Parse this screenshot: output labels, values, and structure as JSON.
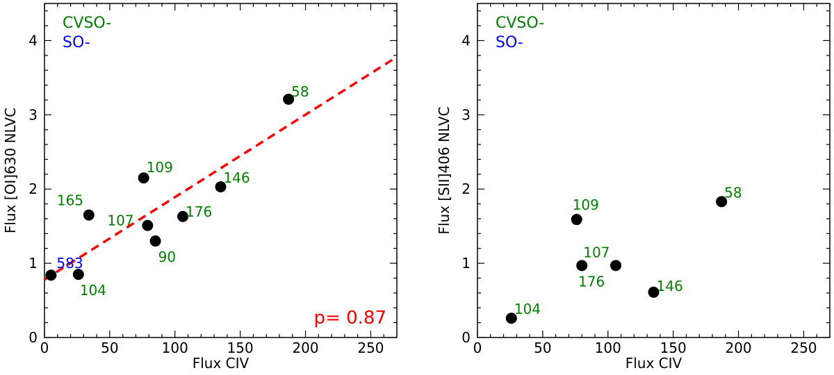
{
  "chart_data": [
    {
      "type": "scatter",
      "xlabel": "Flux CIV",
      "ylabel": "Flux [OI]630 NLVC",
      "xlim": [
        0,
        270
      ],
      "ylim": [
        0,
        4.5
      ],
      "xticks": [
        0,
        50,
        100,
        150,
        200,
        250
      ],
      "yticks": [
        0,
        1,
        2,
        3,
        4
      ],
      "legend": [
        {
          "text": "CVSO-",
          "color": "#008000"
        },
        {
          "text": "SO-",
          "color": "#0000ff"
        }
      ],
      "points": [
        {
          "x": 5,
          "y": 0.84,
          "label": "583",
          "color": "#0000ff"
        },
        {
          "x": 26,
          "y": 0.85,
          "label": "104",
          "color": "#008000"
        },
        {
          "x": 34,
          "y": 1.65,
          "label": "165",
          "color": "#008000"
        },
        {
          "x": 76,
          "y": 2.15,
          "label": "109",
          "color": "#008000"
        },
        {
          "x": 79,
          "y": 1.51,
          "label": "107",
          "color": "#008000"
        },
        {
          "x": 85,
          "y": 1.3,
          "label": "90",
          "color": "#008000"
        },
        {
          "x": 106,
          "y": 1.63,
          "label": "176",
          "color": "#008000"
        },
        {
          "x": 135,
          "y": 2.03,
          "label": "146",
          "color": "#008000"
        },
        {
          "x": 187,
          "y": 3.21,
          "label": "58",
          "color": "#008000"
        }
      ],
      "fit_line": {
        "x": [
          0,
          270
        ],
        "y": [
          0.78,
          3.78
        ],
        "color": "#ff0000",
        "style": "dashed"
      },
      "annotation": {
        "text": "p=  0.87",
        "color": "#ff0000"
      }
    },
    {
      "type": "scatter",
      "xlabel": "Flux CIV",
      "ylabel": "Flux [SII]406 NLVC",
      "xlim": [
        0,
        270
      ],
      "ylim": [
        0,
        4.5
      ],
      "xticks": [
        0,
        50,
        100,
        150,
        200,
        250
      ],
      "yticks": [
        0,
        1,
        2,
        3,
        4
      ],
      "legend": [
        {
          "text": "CVSO-",
          "color": "#008000"
        },
        {
          "text": "SO-",
          "color": "#0000ff"
        }
      ],
      "points": [
        {
          "x": 26,
          "y": 0.26,
          "label": "104",
          "color": "#008000"
        },
        {
          "x": 76,
          "y": 1.59,
          "label": "109",
          "color": "#008000"
        },
        {
          "x": 80,
          "y": 0.97,
          "label": "107",
          "color": "#008000"
        },
        {
          "x": 106,
          "y": 0.97,
          "label": "176",
          "color": "#008000"
        },
        {
          "x": 135,
          "y": 0.61,
          "label": "146",
          "color": "#008000"
        },
        {
          "x": 187,
          "y": 1.83,
          "label": "58",
          "color": "#008000"
        }
      ]
    }
  ]
}
